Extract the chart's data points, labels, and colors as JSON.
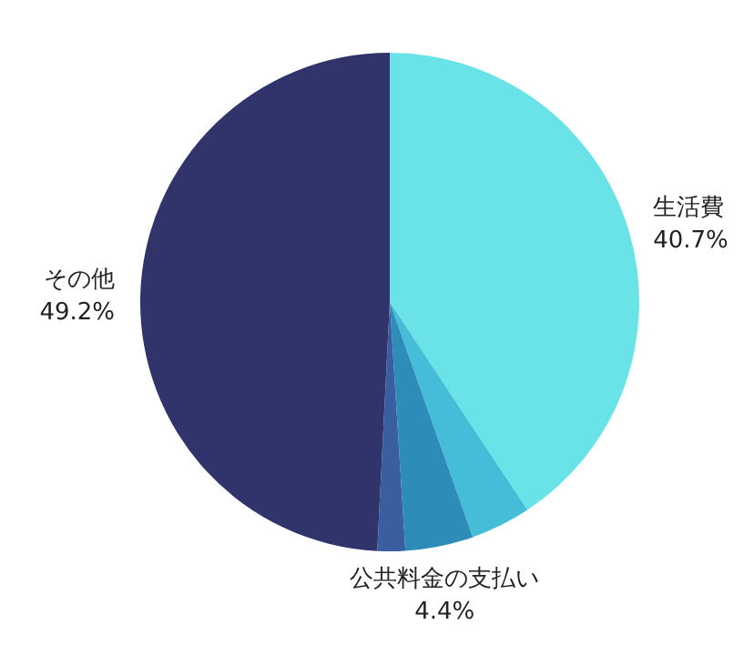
{
  "chart_data": {
    "type": "pie",
    "categories": [
      "生活費",
      null,
      "公共料金の支払い",
      null,
      "その他"
    ],
    "values": [
      40.7,
      3.9,
      4.4,
      1.8,
      49.2
    ],
    "colors": [
      "#6ae3e8",
      "#45bcd8",
      "#2e8cb8",
      "#3a5fa0",
      "#30346b"
    ],
    "value_labels": [
      "40.7%",
      null,
      "4.4%",
      null,
      "49.2%"
    ],
    "legend": false
  }
}
